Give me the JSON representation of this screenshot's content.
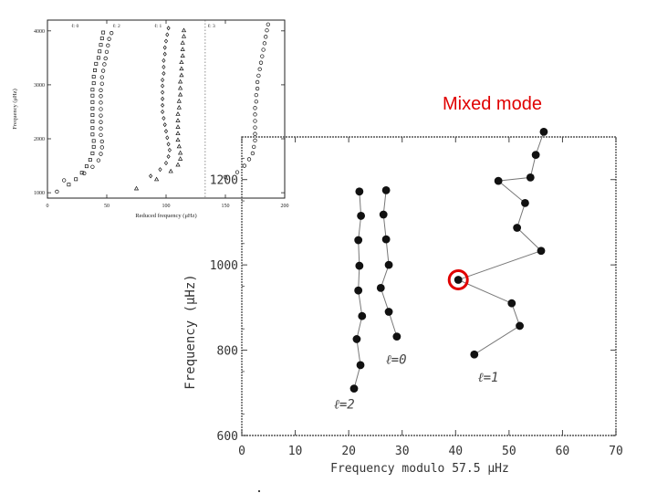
{
  "annotation": {
    "label": "Mixed mode",
    "color": "#e00000"
  },
  "chart_data": [
    {
      "type": "scatter",
      "xlabel": "Reduced frequency (μHz)",
      "ylabel": "Frequency (μHz)",
      "xlim": [
        0,
        200
      ],
      "ylim": [
        900,
        4200
      ],
      "xticks": [
        "0",
        "50",
        "100",
        "150",
        "200"
      ],
      "yticks": [
        "1000",
        "2000",
        "3000",
        "4000"
      ],
      "divider_x": 133,
      "series": [
        {
          "name": "ℓ: 0",
          "marker": "square",
          "x": [
            18,
            24,
            29,
            33,
            36,
            38,
            39,
            39,
            38,
            38,
            38,
            38,
            38,
            38,
            38,
            38,
            39,
            39,
            40,
            41,
            43,
            44,
            45,
            46,
            47
          ],
          "y": [
            1150,
            1250,
            1370,
            1490,
            1610,
            1730,
            1850,
            1960,
            2080,
            2200,
            2320,
            2440,
            2560,
            2680,
            2800,
            2910,
            3030,
            3150,
            3270,
            3390,
            3500,
            3620,
            3740,
            3860,
            3970
          ]
        },
        {
          "name": "ℓ: 2",
          "marker": "circle",
          "x": [
            8,
            14,
            31,
            38,
            43,
            45,
            46,
            46,
            45,
            45,
            45,
            45,
            45,
            45,
            45,
            45,
            46,
            46,
            47,
            48,
            49,
            50,
            51,
            52,
            54
          ],
          "y": [
            1020,
            1230,
            1360,
            1480,
            1600,
            1720,
            1840,
            1950,
            2070,
            2190,
            2310,
            2430,
            2550,
            2670,
            2790,
            2900,
            3020,
            3140,
            3260,
            3380,
            3490,
            3610,
            3730,
            3850,
            3960
          ]
        },
        {
          "name": "ℓ: 1",
          "marker": "triangle",
          "x": [
            75,
            92,
            104,
            110,
            112,
            112,
            111,
            110,
            110,
            110,
            110,
            110,
            111,
            111,
            112,
            112,
            112,
            113,
            113,
            113,
            114,
            114,
            114,
            115,
            115
          ],
          "y": [
            1080,
            1250,
            1400,
            1520,
            1630,
            1740,
            1860,
            1980,
            2100,
            2220,
            2340,
            2460,
            2580,
            2700,
            2820,
            2940,
            3060,
            3180,
            3300,
            3420,
            3540,
            3660,
            3780,
            3900,
            4010
          ]
        },
        {
          "name": "ℓ: 3",
          "marker": "circle",
          "x": [
            150,
            160,
            166,
            170,
            173,
            174,
            175,
            175,
            175,
            175,
            175,
            175,
            176,
            176,
            177,
            177,
            178,
            179,
            180,
            181,
            182,
            183,
            184,
            185,
            186
          ],
          "y": [
            1290,
            1380,
            1500,
            1620,
            1730,
            1850,
            1970,
            2090,
            2210,
            2330,
            2450,
            2570,
            2690,
            2810,
            2930,
            3050,
            3170,
            3290,
            3410,
            3530,
            3650,
            3770,
            3890,
            4010,
            4120
          ]
        },
        {
          "name": "",
          "marker": "diamond",
          "x": [
            87,
            95,
            100,
            102,
            103,
            102,
            101,
            100,
            99,
            98,
            97,
            97,
            97,
            97,
            97,
            97,
            98,
            98,
            98,
            99,
            99,
            100,
            101,
            102
          ],
          "y": [
            1310,
            1430,
            1550,
            1670,
            1790,
            1900,
            2020,
            2140,
            2260,
            2380,
            2500,
            2620,
            2740,
            2860,
            2980,
            3090,
            3210,
            3330,
            3450,
            3570,
            3690,
            3810,
            3930,
            4050
          ]
        }
      ]
    },
    {
      "type": "line",
      "xlabel": "Frequency modulo 57.5 μHz",
      "ylabel": "Frequency (μHz)",
      "xlim": [
        0,
        70
      ],
      "ylim": [
        600,
        1300
      ],
      "xticks": [
        "0",
        "10",
        "20",
        "30",
        "40",
        "50",
        "60",
        "70"
      ],
      "yticks": [
        "600",
        "800",
        "1000",
        "1200"
      ],
      "series": [
        {
          "name": "ℓ=2",
          "x": [
            21,
            22.2,
            21.5,
            22.5,
            21.8,
            22,
            21.8,
            22.3,
            22
          ],
          "y": [
            710,
            765,
            826,
            880,
            940,
            998,
            1058,
            1115,
            1172
          ]
        },
        {
          "name": "ℓ=0",
          "x": [
            29,
            27.5,
            26,
            27.5,
            27,
            26.5,
            27
          ],
          "y": [
            832,
            890,
            946,
            1000,
            1060,
            1118,
            1175
          ]
        },
        {
          "name": "ℓ=1",
          "x": [
            43.5,
            52,
            50.5,
            40.5,
            56,
            51.5,
            53,
            48,
            54,
            55,
            56.5
          ],
          "y": [
            790,
            857,
            910,
            965,
            1033,
            1087,
            1145,
            1197,
            1205,
            1258,
            1312
          ]
        }
      ],
      "highlight": {
        "x": 40.5,
        "y": 965
      }
    }
  ]
}
